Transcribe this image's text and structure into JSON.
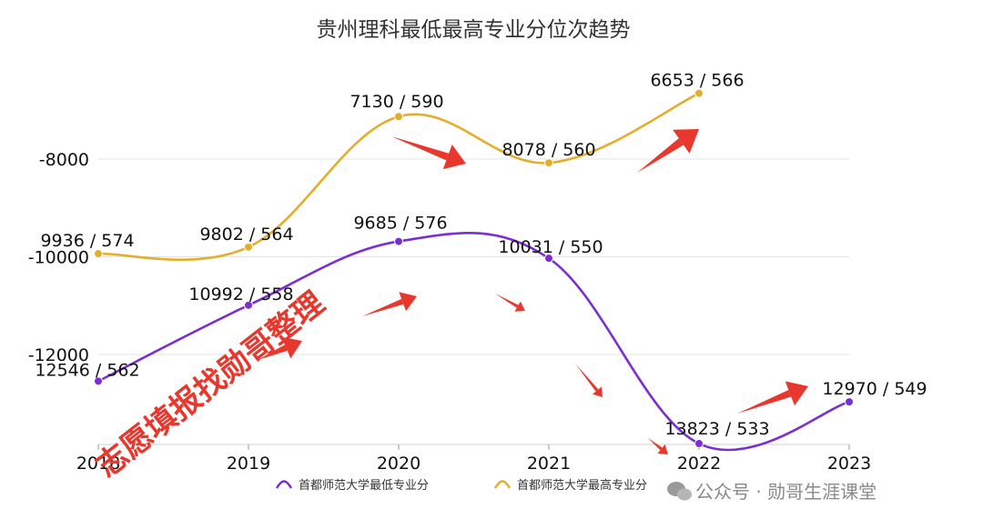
{
  "chart_data": {
    "type": "line",
    "title": "贵州理科最低最高专业分位次趋势",
    "categories": [
      "2018",
      "2019",
      "2020",
      "2021",
      "2022",
      "2023"
    ],
    "y_ticks": [
      -8000,
      -10000,
      -12000
    ],
    "y_tick_labels": [
      "-8000",
      "-10000",
      "-12000"
    ],
    "ylim": [
      -13800,
      -6400
    ],
    "grid": true,
    "legend_position": "bottom",
    "series": [
      {
        "name": "首都师范大学最低专业分",
        "color": "#7b2fd1",
        "values": [
          -12546,
          -10992,
          -9685,
          -10031,
          -13823,
          -12970
        ],
        "labels": [
          "12546 / 562",
          "10992 / 558",
          "9685 / 576",
          "10031 / 550",
          "13823 / 533",
          "12970 / 549"
        ]
      },
      {
        "name": "首都师范大学最高专业分",
        "color": "#e3ae2b",
        "values": [
          -9936,
          -9802,
          -7130,
          -8078,
          -6653,
          null
        ],
        "labels": [
          "9936 / 574",
          "9802 / 564",
          "7130 / 590",
          "8078 / 560",
          "6653 / 566",
          null
        ]
      }
    ]
  },
  "overlay": {
    "stamp_text": "志愿填报找勋哥整理",
    "stamp_color": "#e8382e",
    "watermark_text": "公众号 · 勋哥生涯课堂",
    "arrow_color": "#e8382e"
  }
}
